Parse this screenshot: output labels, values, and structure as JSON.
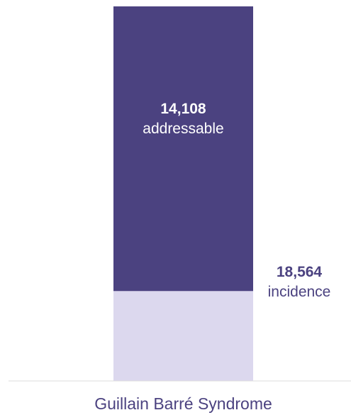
{
  "chart_data": {
    "type": "bar",
    "stacked": true,
    "categories": [
      "Guillain Barré Syndrome"
    ],
    "series": [
      {
        "key": "addressable",
        "values": [
          14108
        ],
        "value_label": "14,108",
        "text_label": "addressable",
        "color": "#4b4280",
        "label_color": "#ffffff"
      },
      {
        "key": "incidence",
        "values": [
          18564
        ],
        "value_label": "18,564",
        "text_label": "incidence",
        "color": "#dcd8ee",
        "label_color": "#4b4280"
      }
    ],
    "category_label_color": "#4b4280",
    "axis_line_color": "#dddddd",
    "gridlines": false,
    "legend": false
  }
}
